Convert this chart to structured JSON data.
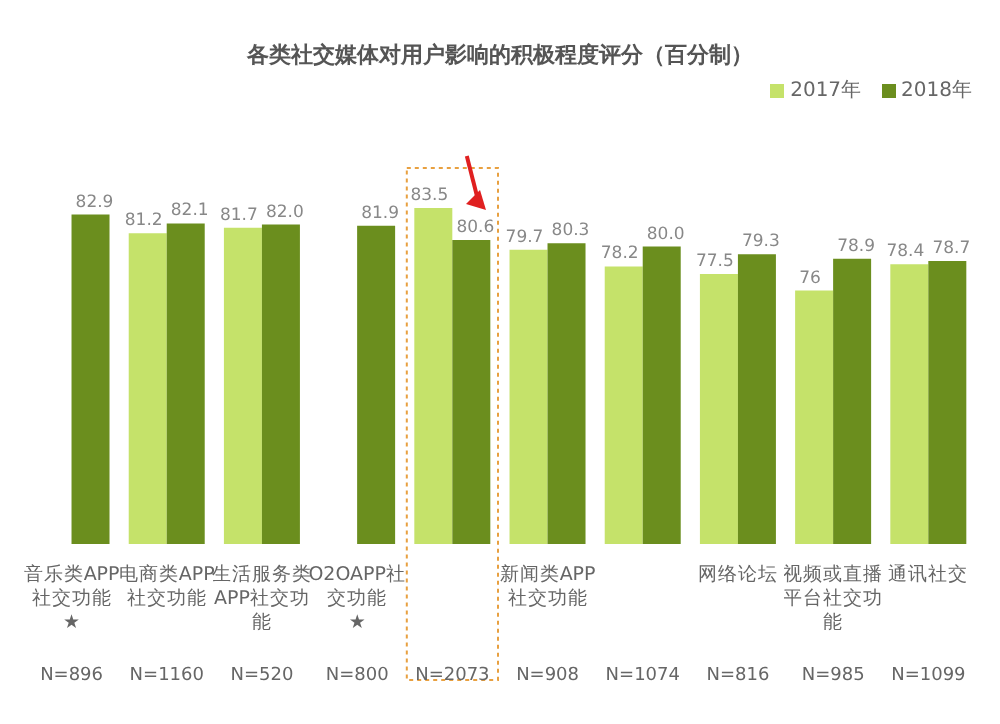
{
  "chart_data": {
    "type": "bar",
    "title": "各类社交媒体对用户影响的积极程度评分（百分制）",
    "categories": [
      "音乐类APP社交功能\n★",
      "电商类APP社交功能",
      "生活服务类APP社交功能",
      "O2OAPP社交功能\n★",
      null,
      "新闻类APP社交功能",
      null,
      "网络论坛",
      "视频或直播平台社交功能",
      "通讯社交"
    ],
    "series": [
      {
        "name": "2017年",
        "color": "#c5e26a",
        "values": [
          null,
          81.2,
          81.7,
          null,
          83.5,
          79.7,
          78.2,
          77.5,
          76,
          78.4
        ],
        "value_labels": [
          null,
          "81.2",
          "81.7",
          null,
          "83.5",
          "79.7",
          "78.2",
          "77.5",
          "76",
          "78.4"
        ]
      },
      {
        "name": "2018年",
        "color": "#6b8e1e",
        "values": [
          82.9,
          82.1,
          82.0,
          81.9,
          80.6,
          80.3,
          80.0,
          79.3,
          78.9,
          78.7
        ],
        "value_labels": [
          "82.9",
          "82.1",
          "82.0",
          "81.9",
          "80.6",
          "80.3",
          "80.0",
          "79.3",
          "78.9",
          "78.7"
        ]
      }
    ],
    "ylim": [
      53,
      83.5
    ],
    "tick_labels": "x",
    "legend": "top right",
    "annotations": [
      "N=896",
      "N=1160",
      "N=520",
      "N=800",
      "N=2073",
      "N=908",
      "N=1074",
      "N=816",
      "N=985",
      "N=1099"
    ]
  }
}
